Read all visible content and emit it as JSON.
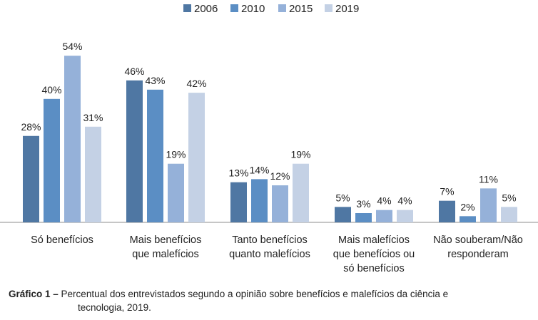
{
  "chart_data": {
    "type": "bar",
    "title": "",
    "xlabel": "",
    "ylabel": "",
    "ylim": [
      0,
      60
    ],
    "grid": false,
    "legend_position": "top",
    "categories": [
      [
        "Só benefícios"
      ],
      [
        "Mais benefícios",
        "que malefícios"
      ],
      [
        "Tanto benefícios",
        "quanto malefícios"
      ],
      [
        "Mais malefícios",
        "que benefícios ou",
        "só benefícios"
      ],
      [
        "Não souberam/Não",
        "responderam"
      ]
    ],
    "series": [
      {
        "name": "2006",
        "color": "#4f77a3",
        "values": [
          28,
          46,
          13,
          5,
          7
        ]
      },
      {
        "name": "2010",
        "color": "#5b8ec4",
        "values": [
          40,
          43,
          14,
          3,
          2
        ]
      },
      {
        "name": "2015",
        "color": "#95b1d9",
        "values": [
          54,
          19,
          12,
          4,
          11
        ]
      },
      {
        "name": "2019",
        "color": "#c4d1e5",
        "values": [
          31,
          42,
          19,
          4,
          5
        ]
      }
    ],
    "value_suffix": "%"
  },
  "caption": {
    "label": "Gráfico 1 –",
    "text_line1": "Percentual dos entrevistados segundo a opinião sobre benefícios e malefícios da ciência e",
    "text_line2": "tecnologia, 2019."
  }
}
